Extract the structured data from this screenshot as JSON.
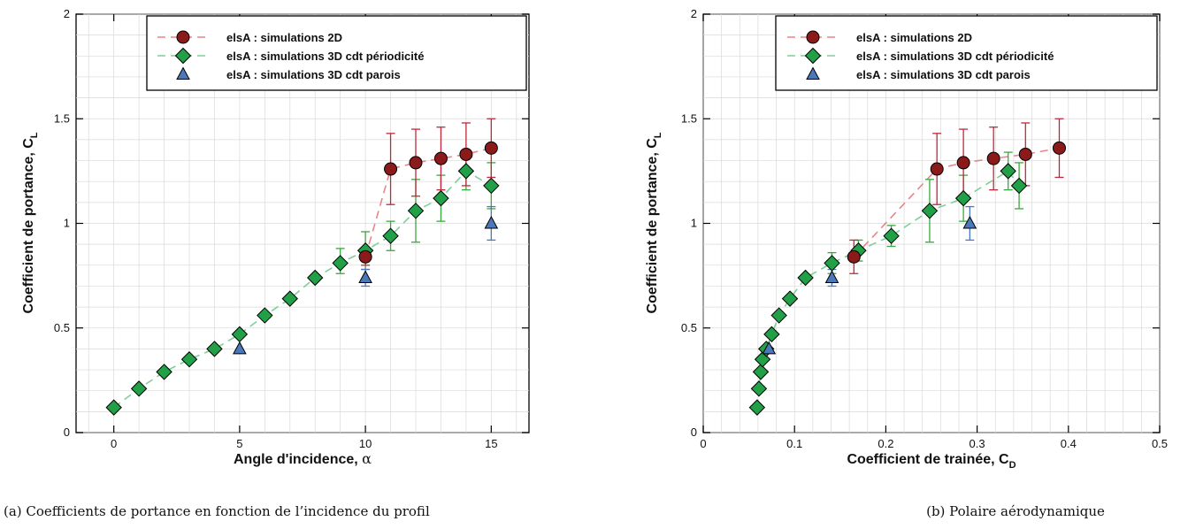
{
  "colors": {
    "s2d": "#8b1a1a",
    "s2d_line": "#e8858a",
    "periodic": "#22a047",
    "periodic_line": "#7fcf99",
    "walls": "#4a78b8",
    "grid": "#d9d9d9",
    "err2d": "#c0283a",
    "errPer": "#3aa83a",
    "errWall": "#4a78c8"
  },
  "captions": {
    "a": "(a) Coefficients de portance en fonction de l’incidence du profil",
    "b": "(b) Polaire aérodynamique"
  },
  "chart_data": [
    {
      "type": "line",
      "panel": "a",
      "xlabel_main": "Angle d'incidence, ",
      "xlabel_symbol": "α",
      "ylabel_main": "Coefficient de portance, C",
      "ylabel_sub": "L",
      "xlim": [
        -1.5,
        16.5
      ],
      "ylim": [
        0,
        2
      ],
      "xticks": [
        0,
        5,
        10,
        15
      ],
      "yticks": [
        0,
        0.5,
        1,
        1.5,
        2
      ],
      "ytick_labels": [
        "0",
        "0.5",
        "1",
        "1.5",
        "2"
      ],
      "legend_position": "top-right",
      "series": [
        {
          "name": "elsA : simulations 2D",
          "marker": "circle",
          "x": [
            10,
            11,
            12,
            13,
            14,
            15
          ],
          "y": [
            0.84,
            1.26,
            1.29,
            1.31,
            1.33,
            1.36
          ],
          "err_up": [
            0.04,
            0.17,
            0.16,
            0.15,
            0.15,
            0.14
          ],
          "err_down": [
            0.04,
            0.17,
            0.16,
            0.15,
            0.15,
            0.14
          ]
        },
        {
          "name": "elsA : simulations 3D cdt périodicité",
          "marker": "diamond",
          "x": [
            0,
            1,
            2,
            3,
            4,
            5,
            6,
            7,
            8,
            9,
            10,
            11,
            12,
            13,
            14,
            15
          ],
          "y": [
            0.12,
            0.21,
            0.29,
            0.35,
            0.4,
            0.47,
            0.56,
            0.64,
            0.74,
            0.81,
            0.87,
            0.94,
            1.06,
            1.12,
            1.25,
            1.18
          ],
          "err_up": [
            0,
            0,
            0,
            0,
            0,
            0,
            0,
            0,
            0,
            0.07,
            0.09,
            0.07,
            0.15,
            0.11,
            0.09,
            0.11
          ],
          "err_down": [
            0,
            0,
            0,
            0,
            0,
            0,
            0,
            0,
            0,
            0.05,
            0.09,
            0.07,
            0.15,
            0.11,
            0.09,
            0.11
          ]
        },
        {
          "name": "elsA : simulations 3D cdt parois",
          "marker": "triangle",
          "x": [
            5,
            10,
            15
          ],
          "y": [
            0.4,
            0.74,
            1.0
          ],
          "err_up": [
            0,
            0.04,
            0.08
          ],
          "err_down": [
            0,
            0.04,
            0.08
          ]
        }
      ]
    },
    {
      "type": "line",
      "panel": "b",
      "xlabel_main": "Coefficient de trainée, C",
      "xlabel_sub": "D",
      "ylabel_main": "Coefficient de portance, C",
      "ylabel_sub": "L",
      "xlim": [
        0,
        0.5
      ],
      "ylim": [
        0,
        2
      ],
      "xticks": [
        0,
        0.1,
        0.2,
        0.3,
        0.4,
        0.5
      ],
      "xtick_labels": [
        "0",
        "0.1",
        "0.2",
        "0.3",
        "0.4",
        "0.5"
      ],
      "yticks": [
        0,
        0.5,
        1,
        1.5,
        2
      ],
      "ytick_labels": [
        "0",
        "0.5",
        "1",
        "1.5",
        "2"
      ],
      "legend_position": "top-right",
      "series": [
        {
          "name": "elsA : simulations 2D",
          "marker": "circle",
          "x": [
            0.165,
            0.256,
            0.285,
            0.318,
            0.353,
            0.39
          ],
          "y": [
            0.84,
            1.26,
            1.29,
            1.31,
            1.33,
            1.36
          ],
          "err_up": [
            0.08,
            0.17,
            0.16,
            0.15,
            0.15,
            0.14
          ],
          "err_down": [
            0.08,
            0.17,
            0.16,
            0.15,
            0.15,
            0.14
          ]
        },
        {
          "name": "elsA : simulations 3D cdt périodicité",
          "marker": "diamond",
          "x": [
            0.059,
            0.061,
            0.063,
            0.065,
            0.069,
            0.075,
            0.083,
            0.095,
            0.112,
            0.141,
            0.17,
            0.206,
            0.248,
            0.285,
            0.334,
            0.346
          ],
          "y": [
            0.12,
            0.21,
            0.29,
            0.35,
            0.4,
            0.47,
            0.56,
            0.64,
            0.74,
            0.81,
            0.87,
            0.94,
            1.06,
            1.12,
            1.25,
            1.18
          ],
          "err_up": [
            0,
            0,
            0,
            0,
            0,
            0,
            0,
            0,
            0,
            0.05,
            0.05,
            0.05,
            0.15,
            0.11,
            0.09,
            0.11
          ],
          "err_down": [
            0,
            0,
            0,
            0,
            0,
            0,
            0,
            0,
            0,
            0.05,
            0.05,
            0.05,
            0.15,
            0.11,
            0.09,
            0.11
          ]
        },
        {
          "name": "elsA : simulations 3D cdt parois",
          "marker": "triangle",
          "x": [
            0.072,
            0.141,
            0.292
          ],
          "y": [
            0.4,
            0.74,
            1.0
          ],
          "err_up": [
            0,
            0.04,
            0.08
          ],
          "err_down": [
            0,
            0.04,
            0.08
          ]
        }
      ]
    }
  ]
}
